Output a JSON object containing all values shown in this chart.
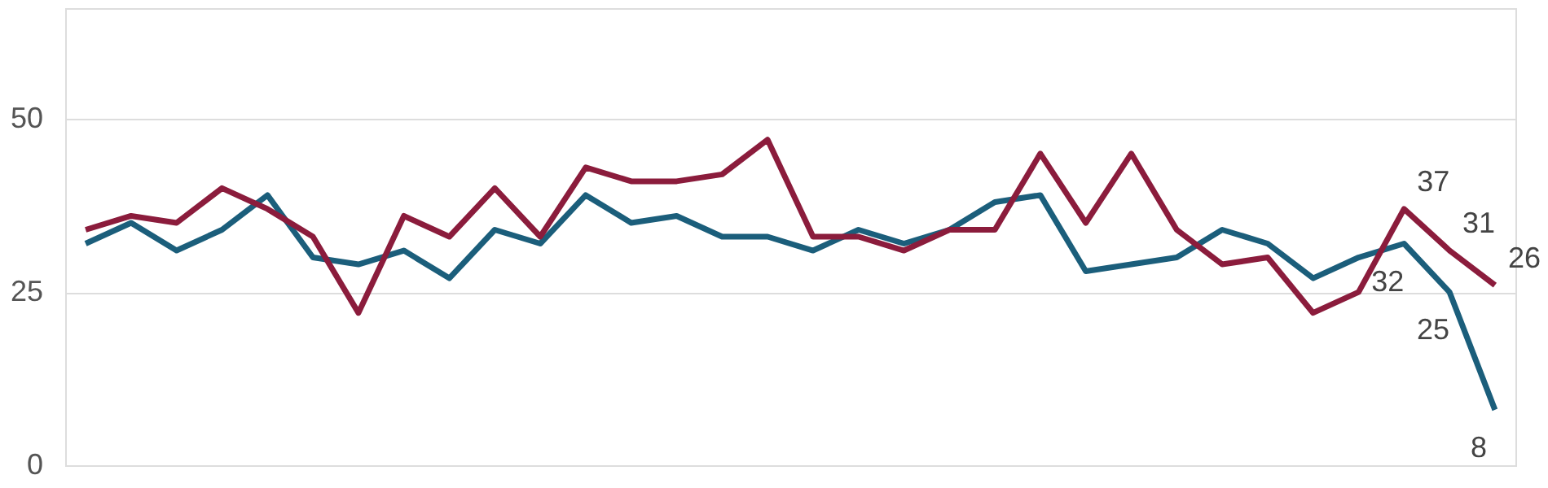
{
  "chart_data": {
    "type": "line",
    "categories": [
      null,
      null,
      null,
      null,
      null,
      null,
      null,
      null,
      null,
      null,
      null,
      null,
      null,
      null,
      null,
      null,
      null,
      null,
      null,
      null,
      null,
      null,
      null,
      null,
      null,
      null,
      null,
      null,
      null,
      null,
      null,
      null
    ],
    "series": [
      {
        "color": "#1b5e7b",
        "values": [
          32,
          35,
          31,
          34,
          39,
          30,
          29,
          31,
          27,
          34,
          32,
          39,
          35,
          36,
          33,
          33,
          31,
          34,
          32,
          34,
          38,
          39,
          28,
          29,
          30,
          34,
          32,
          27,
          30,
          32,
          25,
          8
        ],
        "value_labels": [
          null,
          null,
          null,
          null,
          null,
          null,
          null,
          null,
          null,
          null,
          null,
          null,
          null,
          null,
          null,
          null,
          null,
          null,
          null,
          null,
          null,
          null,
          null,
          null,
          null,
          null,
          null,
          null,
          null,
          "32",
          "25",
          "8"
        ]
      },
      {
        "color": "#8b1c3c",
        "values": [
          34,
          36,
          35,
          40,
          37,
          33,
          22,
          36,
          33,
          40,
          33,
          43,
          41,
          41,
          42,
          47,
          33,
          33,
          31,
          34,
          34,
          45,
          35,
          45,
          34,
          29,
          30,
          22,
          25,
          37,
          31,
          26
        ],
        "value_labels": [
          null,
          null,
          null,
          null,
          null,
          null,
          null,
          null,
          null,
          null,
          null,
          null,
          null,
          null,
          null,
          null,
          null,
          null,
          null,
          null,
          null,
          null,
          null,
          null,
          null,
          null,
          null,
          null,
          null,
          "37",
          "31",
          "26"
        ]
      }
    ],
    "ylim": [
      0,
      66
    ],
    "yticks": [
      0,
      25,
      50
    ],
    "grid": "y",
    "tick_labels": "y",
    "marker": "none",
    "line_style": "solid",
    "legend": false
  }
}
